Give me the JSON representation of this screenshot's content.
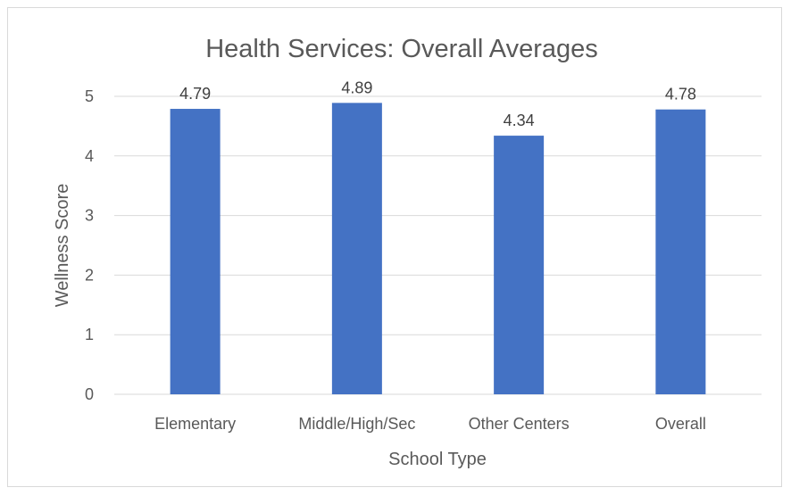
{
  "chart_data": {
    "type": "bar",
    "title": "Health Services: Overall Averages",
    "xlabel": "School Type",
    "ylabel": "Wellness Score",
    "categories": [
      "Elementary",
      "Middle/High/Sec",
      "Other Centers",
      "Overall"
    ],
    "values": [
      4.79,
      4.89,
      4.34,
      4.78
    ],
    "data_labels": [
      "4.79",
      "4.89",
      "4.34",
      "4.78"
    ],
    "ylim": [
      0,
      5
    ],
    "yticks": [
      "0",
      "1",
      "2",
      "3",
      "4",
      "5"
    ],
    "grid": true,
    "legend": "none",
    "bar_color": "#4472c4"
  }
}
